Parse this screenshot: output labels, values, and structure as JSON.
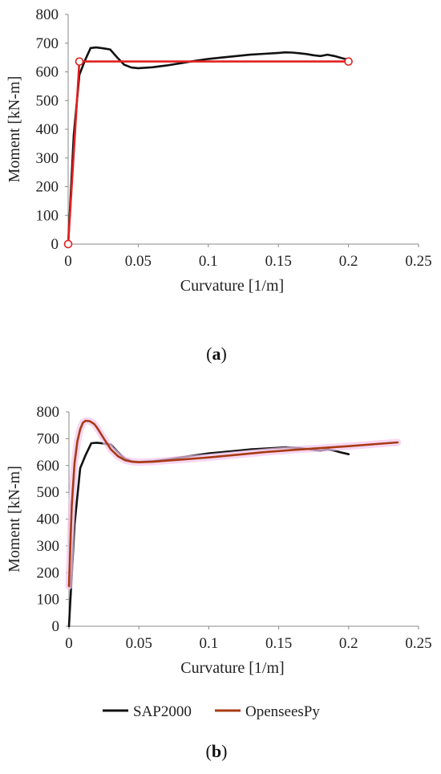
{
  "chart_data": [
    {
      "type": "line",
      "caption_letter": "a",
      "xlabel": "Curvature [1/m]",
      "ylabel": "Moment [kN-m]",
      "xlim": [
        0,
        0.25
      ],
      "ylim": [
        0,
        800
      ],
      "xticks": [
        0,
        0.05,
        0.1,
        0.15,
        0.2,
        0.25
      ],
      "xtick_labels": [
        "0",
        "0.05",
        "0.1",
        "0.15",
        "0.2",
        "0.25"
      ],
      "yticks": [
        0,
        100,
        200,
        300,
        400,
        500,
        600,
        700,
        800
      ],
      "ytick_labels": [
        "0",
        "100",
        "200",
        "300",
        "400",
        "500",
        "600",
        "700",
        "800"
      ],
      "grid": false,
      "series": [
        {
          "color": "#111111",
          "x": [
            0,
            0.004,
            0.008,
            0.012,
            0.016,
            0.02,
            0.025,
            0.03,
            0.035,
            0.04,
            0.045,
            0.05,
            0.06,
            0.07,
            0.08,
            0.09,
            0.1,
            0.11,
            0.12,
            0.13,
            0.14,
            0.15,
            0.155,
            0.16,
            0.165,
            0.17,
            0.175,
            0.18,
            0.185,
            0.19,
            0.195,
            0.2
          ],
          "y": [
            0,
            380,
            590,
            640,
            683,
            685,
            682,
            678,
            650,
            625,
            615,
            613,
            616,
            622,
            630,
            638,
            645,
            650,
            655,
            660,
            663,
            666,
            668,
            667,
            665,
            662,
            658,
            655,
            660,
            655,
            648,
            642
          ]
        },
        {
          "color": "#e02020",
          "x": [
            0,
            0.008,
            0.2
          ],
          "y": [
            0,
            636,
            636
          ],
          "markers": true
        }
      ]
    },
    {
      "type": "line",
      "caption_letter": "b",
      "xlabel": "Curvature [1/m]",
      "ylabel": "Moment [kN-m]",
      "xlim": [
        0,
        0.25
      ],
      "ylim": [
        0,
        800
      ],
      "xticks": [
        0,
        0.05,
        0.1,
        0.15,
        0.2,
        0.25
      ],
      "xtick_labels": [
        "0",
        "0.05",
        "0.1",
        "0.15",
        "0.2",
        "0.25"
      ],
      "yticks": [
        0,
        100,
        200,
        300,
        400,
        500,
        600,
        700,
        800
      ],
      "ytick_labels": [
        "0",
        "100",
        "200",
        "300",
        "400",
        "500",
        "600",
        "700",
        "800"
      ],
      "grid": false,
      "legend": "bottom",
      "series": [
        {
          "name": "SAP2000",
          "color": "#111111",
          "x": [
            0,
            0.004,
            0.008,
            0.012,
            0.016,
            0.02,
            0.025,
            0.03,
            0.035,
            0.04,
            0.045,
            0.05,
            0.06,
            0.07,
            0.08,
            0.09,
            0.1,
            0.11,
            0.12,
            0.13,
            0.14,
            0.15,
            0.155,
            0.16,
            0.165,
            0.17,
            0.175,
            0.18,
            0.185,
            0.19,
            0.195,
            0.2
          ],
          "y": [
            0,
            380,
            590,
            640,
            683,
            685,
            682,
            678,
            650,
            625,
            615,
            613,
            616,
            622,
            630,
            638,
            645,
            650,
            655,
            660,
            663,
            666,
            668,
            667,
            665,
            662,
            658,
            655,
            660,
            655,
            648,
            642
          ]
        },
        {
          "name": "OpenseesPy",
          "color": "#a83a14",
          "x": [
            0,
            0.002,
            0.004,
            0.006,
            0.008,
            0.01,
            0.012,
            0.015,
            0.018,
            0.02,
            0.025,
            0.03,
            0.035,
            0.04,
            0.045,
            0.05,
            0.06,
            0.07,
            0.08,
            0.1,
            0.12,
            0.14,
            0.16,
            0.18,
            0.2,
            0.22,
            0.235
          ],
          "y": [
            150,
            450,
            610,
            690,
            735,
            760,
            767,
            765,
            755,
            742,
            700,
            660,
            635,
            620,
            614,
            612,
            614,
            618,
            622,
            630,
            640,
            650,
            658,
            665,
            672,
            680,
            686
          ]
        }
      ]
    }
  ]
}
